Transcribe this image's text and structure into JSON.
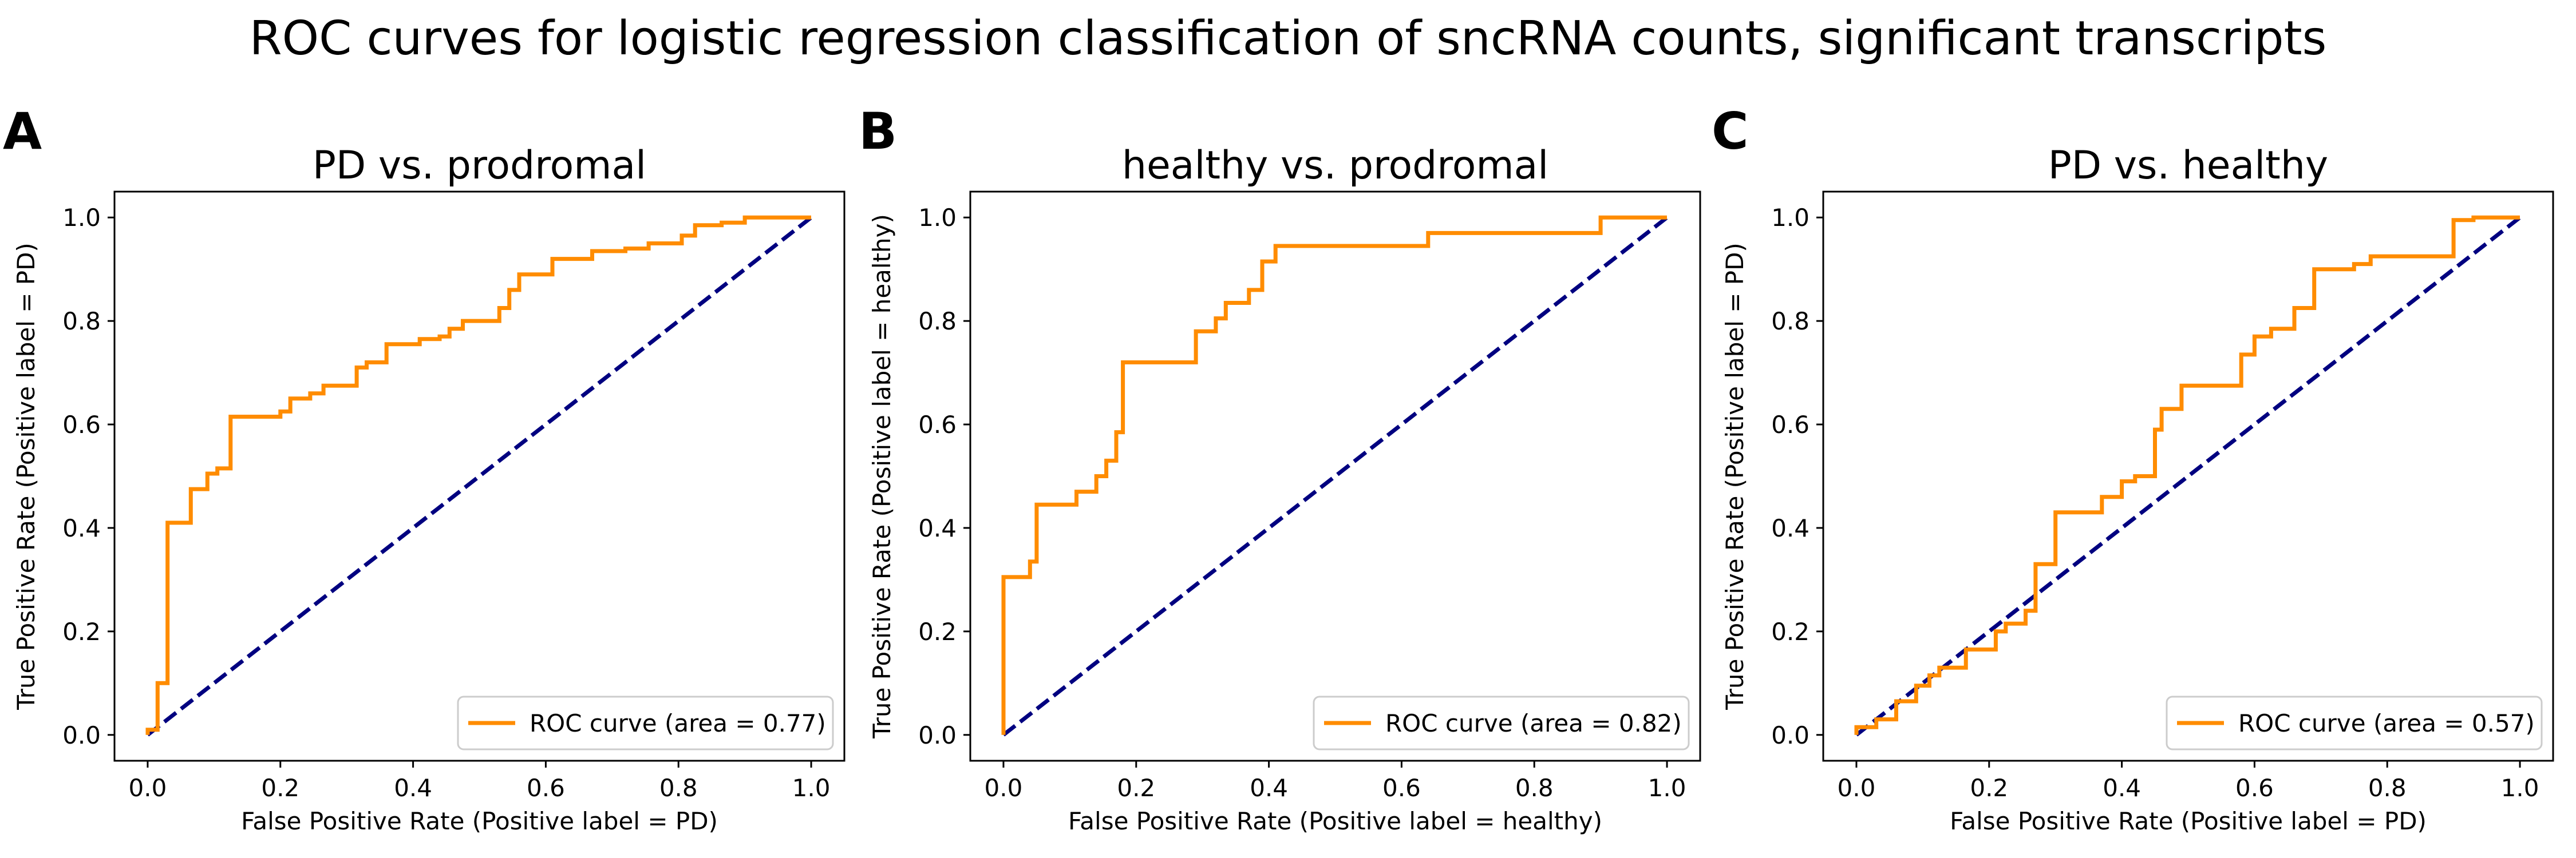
{
  "title": "ROC curves for logistic regression classification of sncRNA counts, significant transcripts",
  "colors": {
    "roc": "#ff8c00",
    "chance": "#000080",
    "axes": "#000000",
    "legend_border": "#cccccc"
  },
  "chart_data": [
    {
      "type": "line",
      "panel": "A",
      "title": "PD vs. prodromal",
      "xlabel": "False Positive Rate (Positive label = PD)",
      "ylabel": "True Positive Rate (Positive label = PD)",
      "xlim": [
        -0.05,
        1.05
      ],
      "ylim": [
        -0.05,
        1.05
      ],
      "xticks": [
        0.0,
        0.2,
        0.4,
        0.6,
        0.8,
        1.0
      ],
      "yticks": [
        0.0,
        0.2,
        0.4,
        0.6,
        0.8,
        1.0
      ],
      "tick_labels": [
        "0.0",
        "0.2",
        "0.4",
        "0.6",
        "0.8",
        "1.0"
      ],
      "legend_label": "ROC curve (area = 0.77)",
      "legend_loc": "lower right",
      "series": [
        {
          "name": "ROC curve (area = 0.77)",
          "x": [
            0.0,
            0.0,
            0.015,
            0.015,
            0.03,
            0.03,
            0.065,
            0.065,
            0.09,
            0.09,
            0.105,
            0.105,
            0.125,
            0.125,
            0.15,
            0.15,
            0.2,
            0.2,
            0.215,
            0.215,
            0.245,
            0.245,
            0.265,
            0.265,
            0.315,
            0.315,
            0.33,
            0.33,
            0.36,
            0.36,
            0.41,
            0.41,
            0.44,
            0.44,
            0.455,
            0.455,
            0.475,
            0.475,
            0.53,
            0.53,
            0.545,
            0.545,
            0.56,
            0.56,
            0.61,
            0.61,
            0.67,
            0.67,
            0.72,
            0.72,
            0.755,
            0.755,
            0.805,
            0.805,
            0.825,
            0.825,
            0.865,
            0.865,
            0.9,
            0.9,
            0.925,
            0.925,
            1.0
          ],
          "y": [
            0.0,
            0.01,
            0.01,
            0.1,
            0.1,
            0.41,
            0.41,
            0.475,
            0.475,
            0.505,
            0.505,
            0.515,
            0.515,
            0.615,
            0.615,
            0.615,
            0.615,
            0.625,
            0.625,
            0.65,
            0.65,
            0.66,
            0.66,
            0.675,
            0.675,
            0.71,
            0.71,
            0.72,
            0.72,
            0.755,
            0.755,
            0.765,
            0.765,
            0.77,
            0.77,
            0.785,
            0.785,
            0.8,
            0.8,
            0.825,
            0.825,
            0.86,
            0.86,
            0.89,
            0.89,
            0.92,
            0.92,
            0.935,
            0.935,
            0.94,
            0.94,
            0.95,
            0.95,
            0.965,
            0.965,
            0.985,
            0.985,
            0.99,
            0.99,
            1.0,
            1.0,
            1.0,
            1.0
          ]
        },
        {
          "name": "chance",
          "x": [
            0.0,
            1.0
          ],
          "y": [
            0.0,
            1.0
          ]
        }
      ]
    },
    {
      "type": "line",
      "panel": "B",
      "title": "healthy vs. prodromal",
      "xlabel": "False Positive Rate (Positive label = healthy)",
      "ylabel": "True Positive Rate (Positive label = healthy)",
      "xlim": [
        -0.05,
        1.05
      ],
      "ylim": [
        -0.05,
        1.05
      ],
      "xticks": [
        0.0,
        0.2,
        0.4,
        0.6,
        0.8,
        1.0
      ],
      "yticks": [
        0.0,
        0.2,
        0.4,
        0.6,
        0.8,
        1.0
      ],
      "tick_labels": [
        "0.0",
        "0.2",
        "0.4",
        "0.6",
        "0.8",
        "1.0"
      ],
      "legend_label": "ROC curve (area = 0.82)",
      "legend_loc": "lower right",
      "series": [
        {
          "name": "ROC curve (area = 0.82)",
          "x": [
            0.0,
            0.0,
            0.04,
            0.04,
            0.05,
            0.05,
            0.11,
            0.11,
            0.14,
            0.14,
            0.155,
            0.155,
            0.17,
            0.17,
            0.18,
            0.18,
            0.19,
            0.19,
            0.29,
            0.29,
            0.32,
            0.32,
            0.335,
            0.335,
            0.37,
            0.37,
            0.39,
            0.39,
            0.41,
            0.41,
            0.64,
            0.64,
            0.9,
            0.9,
            1.0
          ],
          "y": [
            0.0,
            0.305,
            0.305,
            0.335,
            0.335,
            0.445,
            0.445,
            0.47,
            0.47,
            0.5,
            0.5,
            0.53,
            0.53,
            0.585,
            0.585,
            0.72,
            0.72,
            0.72,
            0.72,
            0.78,
            0.78,
            0.805,
            0.805,
            0.835,
            0.835,
            0.86,
            0.86,
            0.915,
            0.915,
            0.945,
            0.945,
            0.97,
            0.97,
            1.0,
            1.0
          ]
        },
        {
          "name": "chance",
          "x": [
            0.0,
            1.0
          ],
          "y": [
            0.0,
            1.0
          ]
        }
      ]
    },
    {
      "type": "line",
      "panel": "C",
      "title": "PD vs. healthy",
      "xlabel": "False Positive Rate (Positive label = PD)",
      "ylabel": "True Positive Rate (Positive label = PD)",
      "xlim": [
        -0.05,
        1.05
      ],
      "ylim": [
        -0.05,
        1.05
      ],
      "xticks": [
        0.0,
        0.2,
        0.4,
        0.6,
        0.8,
        1.0
      ],
      "yticks": [
        0.0,
        0.2,
        0.4,
        0.6,
        0.8,
        1.0
      ],
      "tick_labels": [
        "0.0",
        "0.2",
        "0.4",
        "0.6",
        "0.8",
        "1.0"
      ],
      "legend_label": "ROC curve (area = 0.57)",
      "legend_loc": "lower right",
      "series": [
        {
          "name": "ROC curve (area = 0.57)",
          "x": [
            0.0,
            0.0,
            0.03,
            0.03,
            0.06,
            0.06,
            0.09,
            0.09,
            0.11,
            0.11,
            0.125,
            0.125,
            0.165,
            0.165,
            0.21,
            0.21,
            0.225,
            0.225,
            0.255,
            0.255,
            0.27,
            0.27,
            0.3,
            0.3,
            0.37,
            0.37,
            0.4,
            0.4,
            0.42,
            0.42,
            0.45,
            0.45,
            0.46,
            0.46,
            0.49,
            0.49,
            0.52,
            0.52,
            0.58,
            0.58,
            0.6,
            0.6,
            0.625,
            0.625,
            0.66,
            0.66,
            0.69,
            0.69,
            0.75,
            0.75,
            0.775,
            0.775,
            0.9,
            0.9,
            0.93,
            0.93,
            1.0
          ],
          "y": [
            0.0,
            0.015,
            0.015,
            0.03,
            0.03,
            0.065,
            0.065,
            0.095,
            0.095,
            0.115,
            0.115,
            0.13,
            0.13,
            0.165,
            0.165,
            0.2,
            0.2,
            0.215,
            0.215,
            0.24,
            0.24,
            0.33,
            0.33,
            0.43,
            0.43,
            0.46,
            0.46,
            0.49,
            0.49,
            0.5,
            0.5,
            0.59,
            0.59,
            0.63,
            0.63,
            0.675,
            0.675,
            0.675,
            0.675,
            0.735,
            0.735,
            0.77,
            0.77,
            0.785,
            0.785,
            0.825,
            0.825,
            0.9,
            0.9,
            0.91,
            0.91,
            0.925,
            0.925,
            0.995,
            0.995,
            1.0,
            1.0
          ]
        },
        {
          "name": "chance",
          "x": [
            0.0,
            1.0
          ],
          "y": [
            0.0,
            1.0
          ]
        }
      ]
    }
  ]
}
